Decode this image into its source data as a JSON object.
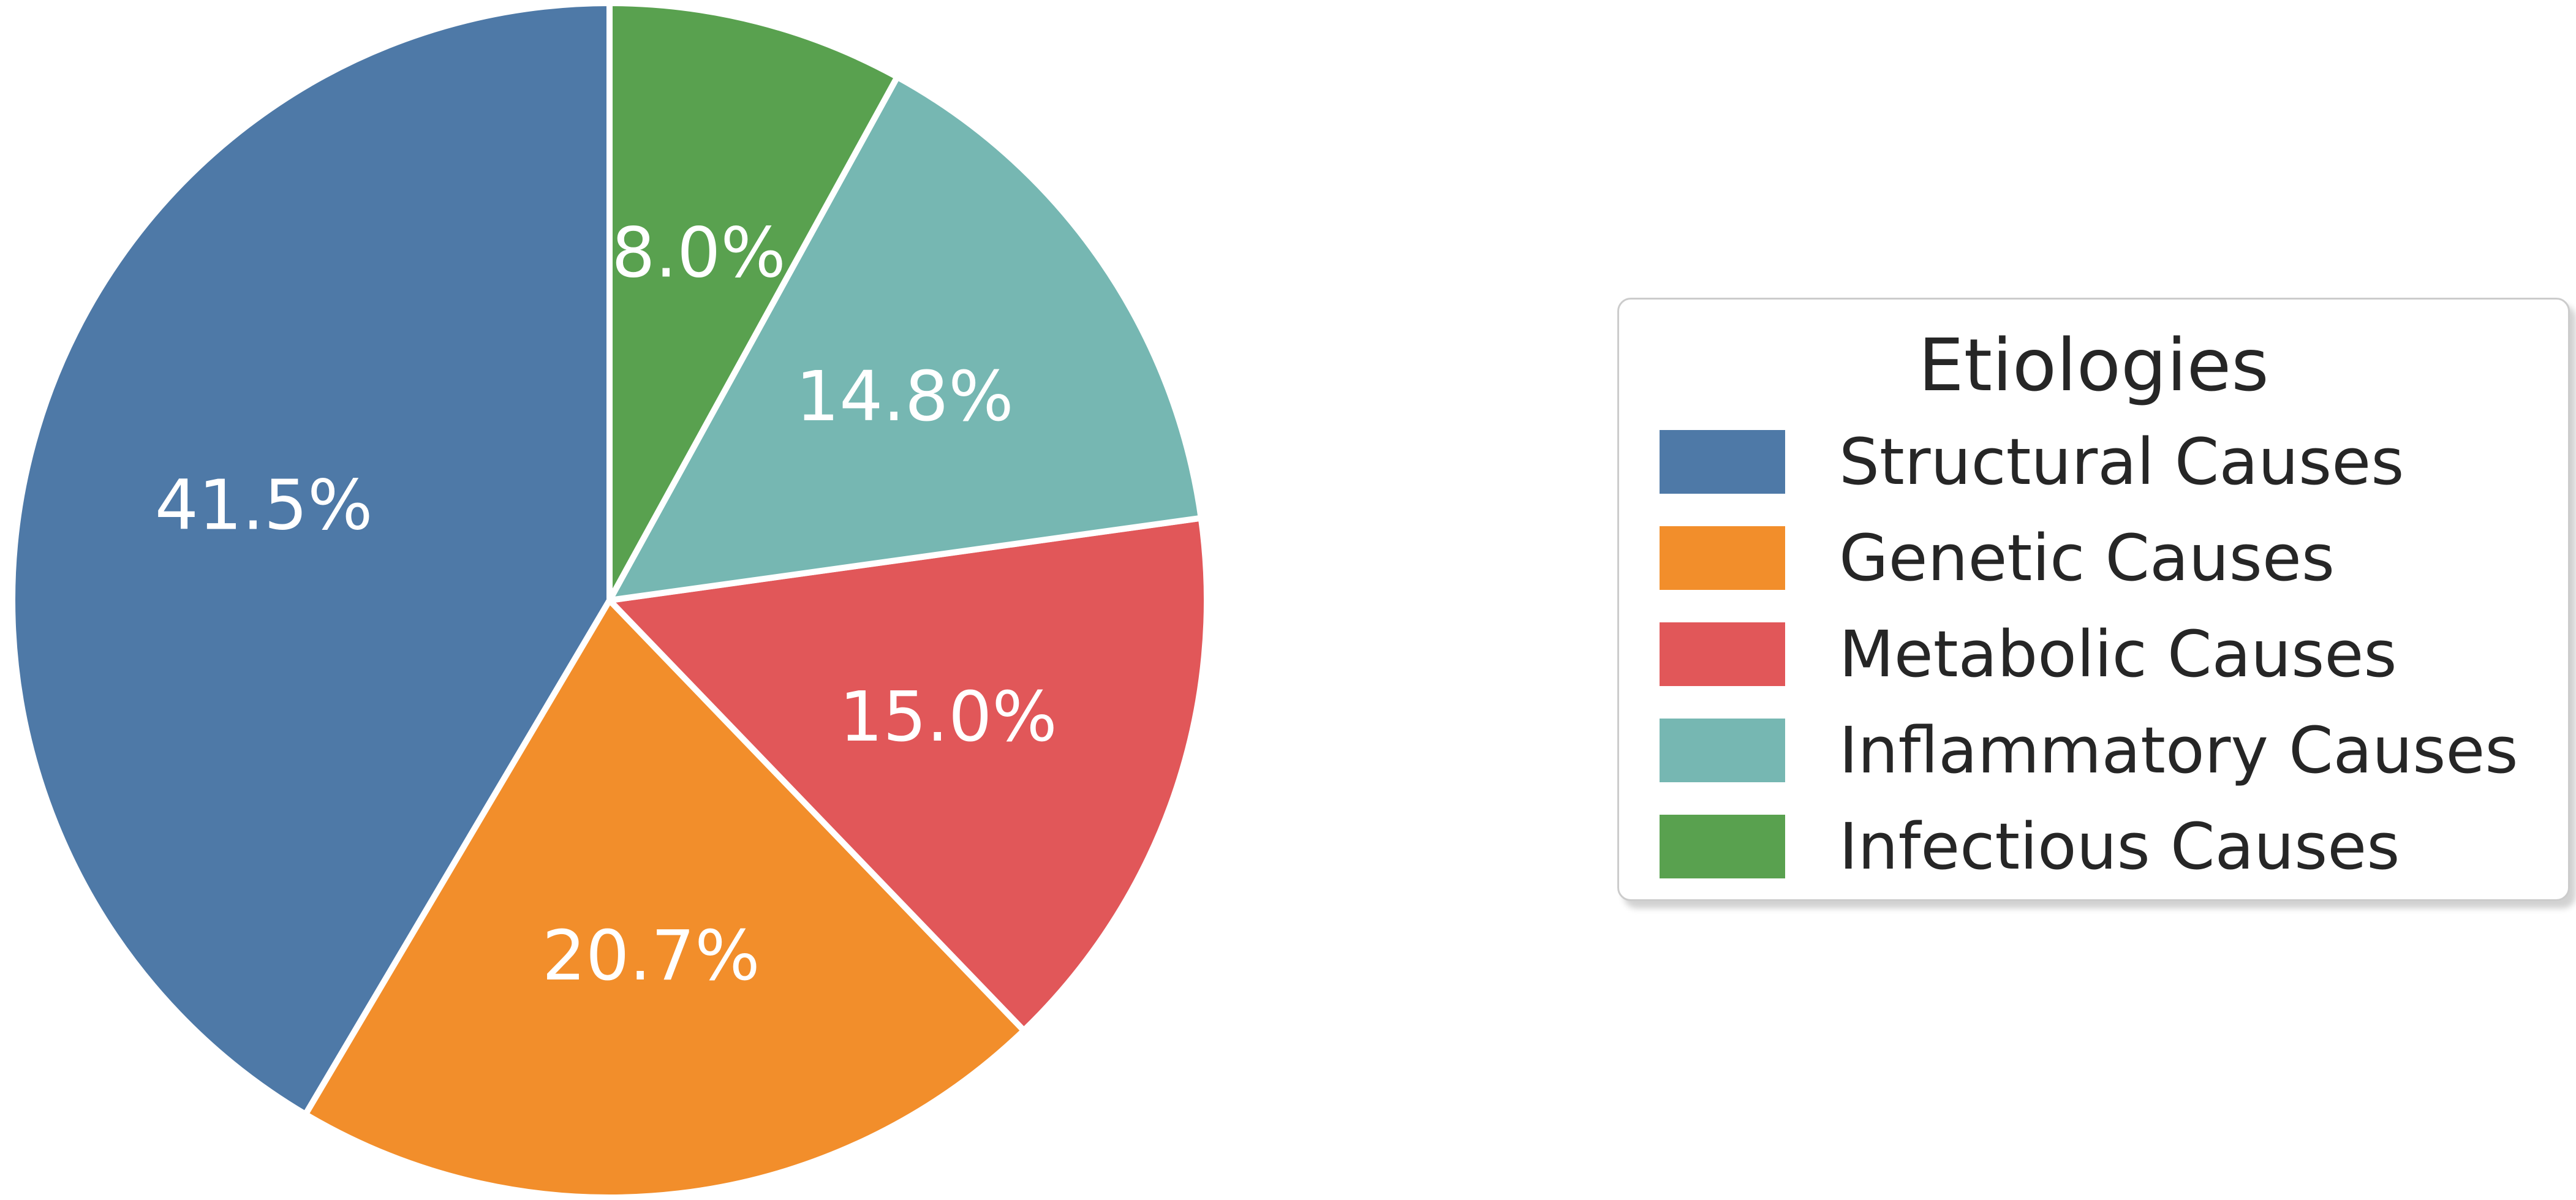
{
  "chart_data": {
    "type": "pie",
    "legend_title": "Etiologies",
    "categories": [
      "Structural Causes",
      "Genetic Causes",
      "Metabolic Causes",
      "Inflammatory Causes",
      "Infectious Causes"
    ],
    "values": [
      41.5,
      20.7,
      15.0,
      14.8,
      8.0
    ],
    "percent_labels": [
      "41.5%",
      "20.7%",
      "15.0%",
      "14.8%",
      "8.0%"
    ],
    "colors": [
      "#4E79A7",
      "#F28E2B",
      "#E15759",
      "#76B7B2",
      "#59A14F"
    ],
    "start_angle": 90,
    "direction": "counterclockwise",
    "label_distance": 0.6,
    "label_color": "#ffffff",
    "wedge_edge_color": "#ffffff",
    "legend_position": "center right",
    "legend_border_color": "#cccccc",
    "text_color": "#262626",
    "background": "#ffffff",
    "grid": false,
    "title": ""
  }
}
